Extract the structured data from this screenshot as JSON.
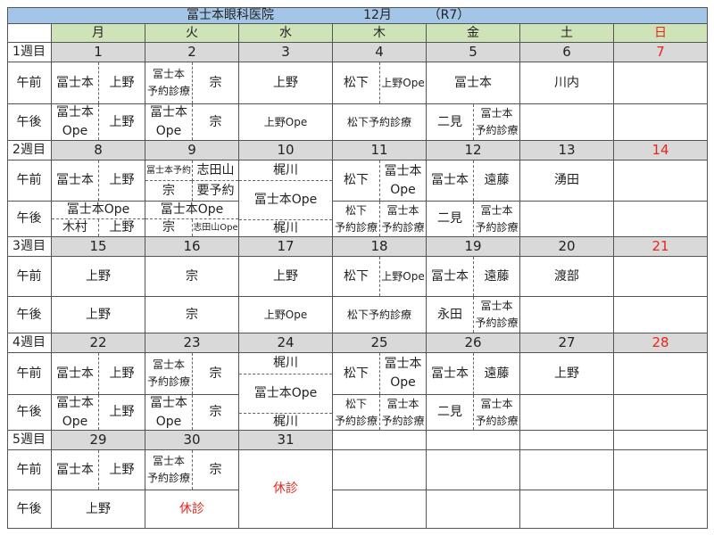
{
  "title": {
    "clinic": "冨士本眼科医院",
    "month": "12月",
    "era": "（R7）"
  },
  "weekdays": [
    "月",
    "火",
    "水",
    "木",
    "金",
    "土",
    "日"
  ],
  "row_labels": {
    "am": "午前",
    "pm": "午後"
  },
  "closed_label": "休診",
  "colors": {
    "title_bg": "#a3c6e8",
    "weekday_bg": "#cfe3b8",
    "date_bg": "#d9d9d9",
    "sunday_red": "#e8261c"
  },
  "weeks": [
    {
      "label": "1週目",
      "days": [
        {
          "date": "1",
          "am": [
            "冨士本",
            "上野"
          ],
          "pm": [
            "冨士本\nOpe",
            "上野"
          ]
        },
        {
          "date": "2",
          "am": [
            "冨士本\n予約診療",
            "宗"
          ],
          "pm": [
            "冨士本\nOpe",
            "宗"
          ]
        },
        {
          "date": "3",
          "am": [
            "上野"
          ],
          "pm": [
            "上野Ope"
          ]
        },
        {
          "date": "4",
          "am": [
            "松下",
            "上野Ope"
          ],
          "pm": [
            "松下予約診療"
          ]
        },
        {
          "date": "5",
          "am": [
            "冨士本"
          ],
          "pm": [
            "二見",
            "冨士本\n予約診療"
          ]
        },
        {
          "date": "6",
          "am": [
            "川内"
          ],
          "pm": []
        },
        {
          "date": "7",
          "am": [],
          "pm": []
        }
      ]
    },
    {
      "label": "2週目",
      "days": [
        {
          "date": "8",
          "am": [
            "冨士本",
            "上野"
          ],
          "pm": [
            "冨士本Ope",
            "木村",
            "上野"
          ]
        },
        {
          "date": "9",
          "am": [
            "冨士本予約",
            "志田山",
            "宗",
            "要予約"
          ],
          "pm": [
            "冨士本Ope",
            "宗",
            "志田山Ope"
          ]
        },
        {
          "date": "10",
          "both": [
            "梶川",
            "冨士本Ope",
            "梶川"
          ]
        },
        {
          "date": "11",
          "am": [
            "松下",
            "冨士本\nOpe"
          ],
          "pm": [
            "松下\n予約診療",
            "冨士本\n予約診療"
          ]
        },
        {
          "date": "12",
          "am": [
            "冨士本",
            "遠藤"
          ],
          "pm": [
            "二見",
            "冨士本\n予約診療"
          ]
        },
        {
          "date": "13",
          "am": [
            "湧田"
          ],
          "pm": []
        },
        {
          "date": "14",
          "am": [],
          "pm": []
        }
      ]
    },
    {
      "label": "3週目",
      "days": [
        {
          "date": "15",
          "am": [
            "上野"
          ],
          "pm": [
            "上野"
          ]
        },
        {
          "date": "16",
          "am": [
            "宗"
          ],
          "pm": [
            "宗"
          ]
        },
        {
          "date": "17",
          "am": [
            "上野"
          ],
          "pm": [
            "上野Ope"
          ]
        },
        {
          "date": "18",
          "am": [
            "松下",
            "上野Ope"
          ],
          "pm": [
            "松下予約診療"
          ]
        },
        {
          "date": "19",
          "am": [
            "冨士本",
            "遠藤"
          ],
          "pm": [
            "永田",
            "冨士本\n予約診療"
          ]
        },
        {
          "date": "20",
          "am": [
            "渡部"
          ],
          "pm": []
        },
        {
          "date": "21",
          "am": [],
          "pm": []
        }
      ]
    },
    {
      "label": "4週目",
      "days": [
        {
          "date": "22",
          "am": [
            "冨士本",
            "上野"
          ],
          "pm": [
            "冨士本\nOpe",
            "上野"
          ]
        },
        {
          "date": "23",
          "am": [
            "冨士本\n予約診療",
            "宗"
          ],
          "pm": [
            "冨士本\nOpe",
            "宗"
          ]
        },
        {
          "date": "24",
          "both": [
            "梶川",
            "冨士本Ope",
            "梶川"
          ]
        },
        {
          "date": "25",
          "am": [
            "松下",
            "冨士本\nOpe"
          ],
          "pm": [
            "松下\n予約診療",
            "冨士本\n予約診療"
          ]
        },
        {
          "date": "26",
          "am": [
            "冨士本",
            "遠藤"
          ],
          "pm": [
            "二見",
            "冨士本\n予約診療"
          ]
        },
        {
          "date": "27",
          "am": [
            "上野"
          ],
          "pm": []
        },
        {
          "date": "28",
          "am": [],
          "pm": []
        }
      ]
    },
    {
      "label": "5週目",
      "days": [
        {
          "date": "29",
          "am": [
            "冨士本",
            "上野"
          ],
          "pm": [
            "上野"
          ]
        },
        {
          "date": "30",
          "am": [
            "冨士本\n予約診療",
            "宗"
          ],
          "pm": [
            "休診"
          ]
        },
        {
          "date": "31",
          "both": [
            "休診"
          ]
        },
        {
          "date": "",
          "am": [],
          "pm": []
        },
        {
          "date": "",
          "am": [],
          "pm": []
        },
        {
          "date": "",
          "am": [],
          "pm": []
        },
        {
          "date": "",
          "am": [],
          "pm": []
        }
      ]
    }
  ]
}
